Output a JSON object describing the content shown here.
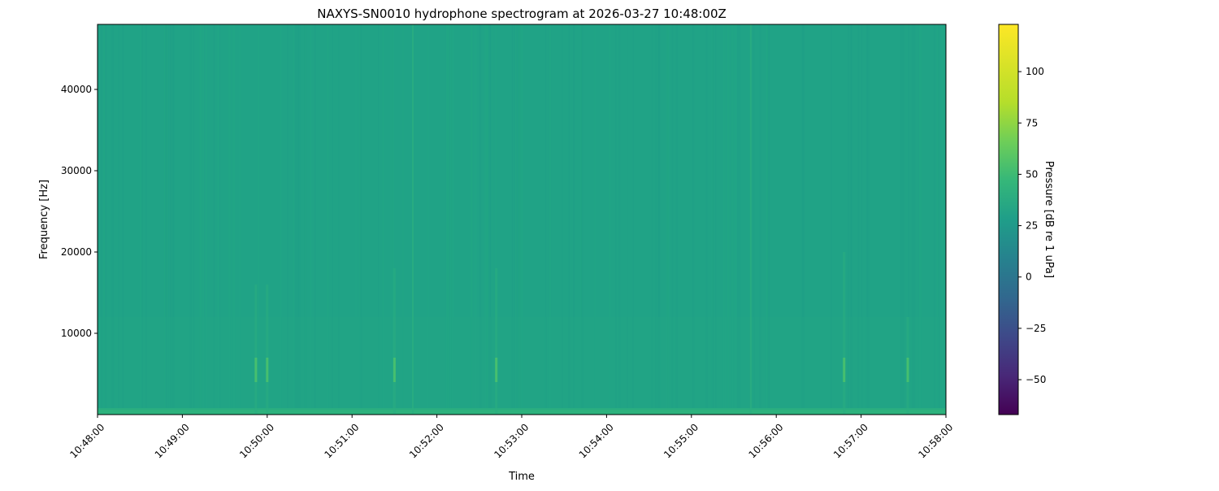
{
  "chart_data": {
    "type": "heatmap",
    "title": "NAXYS-SN0010 hydrophone spectrogram at 2026-03-27 10:48:00Z",
    "xlabel": "Time",
    "ylabel": "Frequency [Hz]",
    "xlim": [
      "10:48:00",
      "10:58:00"
    ],
    "ylim": [
      0,
      48000
    ],
    "x_ticks": [
      "10:48:00",
      "10:49:00",
      "10:50:00",
      "10:51:00",
      "10:52:00",
      "10:53:00",
      "10:54:00",
      "10:55:00",
      "10:56:00",
      "10:57:00",
      "10:58:00"
    ],
    "y_ticks": [
      10000,
      20000,
      30000,
      40000
    ],
    "colormap": "viridis",
    "colorbar": {
      "label": "Pressure [dB re 1 uPa]",
      "range": [
        -67,
        123
      ],
      "ticks": [
        -50,
        -25,
        0,
        25,
        50,
        75,
        100
      ]
    },
    "background_level_db": 50,
    "low_frequency_band": {
      "freq_max_hz": 800,
      "level_db": 62
    },
    "transient_events": [
      {
        "time": "10:49:52",
        "freq_max_hz": 16000,
        "level_db": 62
      },
      {
        "time": "10:50:00",
        "freq_max_hz": 16000,
        "level_db": 64
      },
      {
        "time": "10:51:30",
        "freq_max_hz": 18000,
        "level_db": 65
      },
      {
        "time": "10:51:43",
        "freq_max_hz": 48000,
        "level_db": 56
      },
      {
        "time": "10:52:42",
        "freq_max_hz": 18000,
        "level_db": 66
      },
      {
        "time": "10:55:42",
        "freq_max_hz": 48000,
        "level_db": 58
      },
      {
        "time": "10:56:48",
        "freq_max_hz": 20000,
        "level_db": 64
      },
      {
        "time": "10:57:33",
        "freq_max_hz": 12000,
        "level_db": 60
      }
    ],
    "colors": {
      "background": "#20a386",
      "low_band": "#2db27d",
      "event": "#4ac16d"
    }
  }
}
